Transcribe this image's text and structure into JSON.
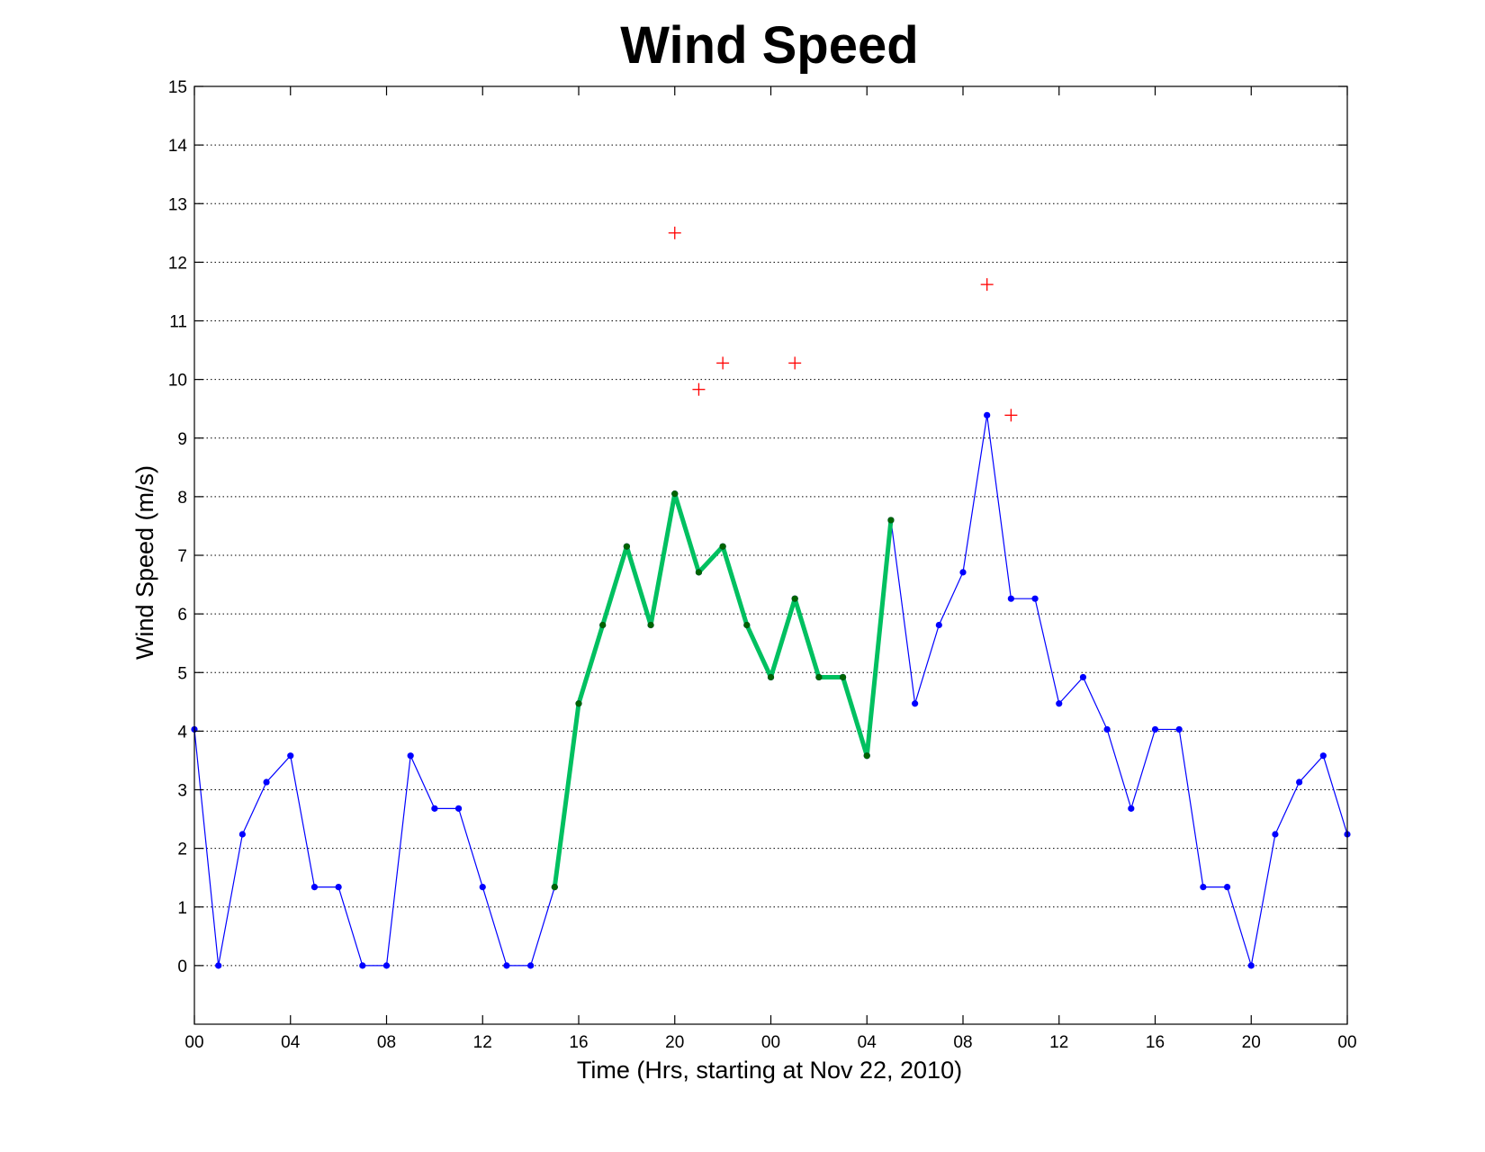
{
  "chart_data": {
    "type": "line",
    "title": "Wind Speed",
    "xlabel": "Time (Hrs, starting at Nov 22, 2010)",
    "ylabel": "Wind Speed (m/s)",
    "xlim": [
      0,
      48
    ],
    "ylim": [
      -1,
      15
    ],
    "grid": "y-dotted",
    "legend": "none",
    "x_ticks": [
      {
        "v": 0,
        "label": "00"
      },
      {
        "v": 4,
        "label": "04"
      },
      {
        "v": 8,
        "label": "08"
      },
      {
        "v": 12,
        "label": "12"
      },
      {
        "v": 16,
        "label": "16"
      },
      {
        "v": 20,
        "label": "20"
      },
      {
        "v": 24,
        "label": "00"
      },
      {
        "v": 28,
        "label": "04"
      },
      {
        "v": 32,
        "label": "08"
      },
      {
        "v": 36,
        "label": "12"
      },
      {
        "v": 40,
        "label": "16"
      },
      {
        "v": 44,
        "label": "20"
      },
      {
        "v": 48,
        "label": "00"
      }
    ],
    "y_ticks": [
      0,
      1,
      2,
      3,
      4,
      5,
      6,
      7,
      8,
      9,
      10,
      11,
      12,
      13,
      14,
      15
    ],
    "series": [
      {
        "color": "#0000ff",
        "marker": "dot",
        "x": [
          0,
          1,
          2,
          3,
          4,
          5,
          6,
          7,
          8,
          9,
          10,
          11,
          12,
          13,
          14,
          15,
          16,
          17,
          18,
          19,
          20,
          21,
          22,
          23,
          24,
          25,
          26,
          27,
          28,
          29,
          30,
          31,
          32,
          33,
          34,
          35,
          36,
          37,
          38,
          39,
          40,
          41,
          42,
          43,
          44,
          45,
          46,
          47,
          48
        ],
        "y": [
          4.03,
          0,
          2.24,
          3.13,
          3.58,
          1.34,
          1.34,
          0,
          0,
          3.58,
          2.68,
          2.68,
          1.34,
          0,
          0,
          1.34,
          4.47,
          5.81,
          7.15,
          5.81,
          8.05,
          6.71,
          7.15,
          5.81,
          4.92,
          6.26,
          4.92,
          4.92,
          3.58,
          7.6,
          4.47,
          5.81,
          6.71,
          9.39,
          6.26,
          6.26,
          4.47,
          4.92,
          4.03,
          2.68,
          4.03,
          4.03,
          1.34,
          1.34,
          0,
          2.24,
          3.13,
          3.58,
          2.24
        ]
      },
      {
        "color": "#00c060",
        "marker_color": "#006400",
        "marker": "dot",
        "x": [
          15,
          16,
          17,
          18,
          19,
          20,
          21,
          22,
          23,
          24,
          25,
          26,
          27,
          28,
          29
        ],
        "y": [
          1.34,
          4.47,
          5.81,
          7.15,
          5.81,
          8.05,
          6.71,
          7.15,
          5.81,
          4.92,
          6.26,
          4.92,
          4.92,
          3.58,
          7.6
        ]
      },
      {
        "color": "#ff0000",
        "marker": "plus",
        "x": [
          20,
          21,
          22,
          25,
          33,
          34
        ],
        "y": [
          12.5,
          9.83,
          10.28,
          10.28,
          11.62,
          9.39
        ]
      }
    ]
  }
}
